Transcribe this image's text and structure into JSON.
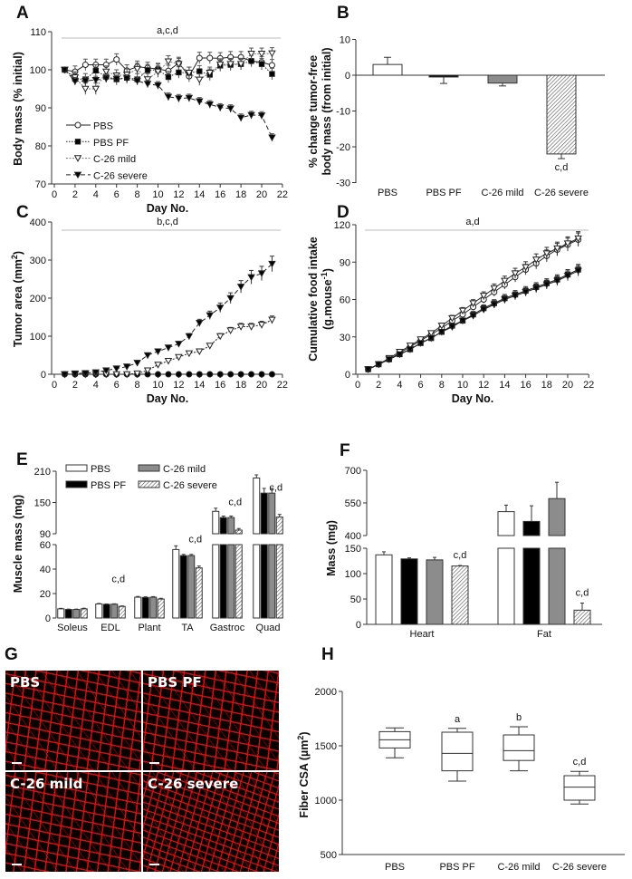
{
  "groups": [
    "PBS",
    "PBS PF",
    "C-26 mild",
    "C-26 severe"
  ],
  "colors": {
    "pbs": "#ffffff",
    "pbs_pf": "#000000",
    "mild": "#8c8c8c",
    "severe_hatch": "#555555",
    "sig_line": "#bbbbbb",
    "red": "#e01818"
  },
  "chart_data": [
    {
      "panel": "A",
      "type": "line",
      "title": "",
      "xlabel": "Day No.",
      "ylabel": "Body mass (% initial)",
      "xlim": [
        0,
        22
      ],
      "ylim": [
        70,
        110
      ],
      "xticks": [
        0,
        2,
        4,
        6,
        8,
        10,
        12,
        14,
        16,
        18,
        20,
        22
      ],
      "yticks": [
        70,
        80,
        90,
        100,
        110
      ],
      "significance": "a,c,d",
      "legend": "bottom-left",
      "x": [
        1,
        2,
        3,
        4,
        5,
        6,
        7,
        8,
        9,
        10,
        11,
        12,
        13,
        14,
        15,
        16,
        17,
        18,
        19,
        20,
        21
      ],
      "series": [
        {
          "name": "PBS",
          "sem": 1.5,
          "values": [
            100,
            99.5,
            101.3,
            101.3,
            101.3,
            102.7,
            99.8,
            100.8,
            100.5,
            100.2,
            99.7,
            101.8,
            98.3,
            103.1,
            103.1,
            103.0,
            103.3,
            103.3,
            102.3,
            102.0,
            101.2
          ]
        },
        {
          "name": "PBS PF",
          "sem": 1.5,
          "values": [
            100,
            97.6,
            97.5,
            99.8,
            98.2,
            97.5,
            97.9,
            97.5,
            99.9,
            100,
            98.1,
            99.3,
            99.2,
            99.6,
            98.7,
            101.1,
            101.3,
            101.5,
            102.3,
            101.5,
            98.9
          ]
        },
        {
          "name": "C-26 mild",
          "sem": 1.5,
          "values": [
            100,
            98,
            95,
            95,
            99.5,
            98.5,
            98.7,
            100.2,
            97.5,
            99.5,
            102.2,
            101.5,
            99.2,
            97.4,
            99.2,
            101.4,
            101.5,
            101.5,
            104.2,
            104.2,
            104.3
          ]
        },
        {
          "name": "C-26 severe",
          "sem": 1.0,
          "values": [
            100,
            97.0,
            97.1,
            97.3,
            97.7,
            97.6,
            97.7,
            97.1,
            96.3,
            95.9,
            92.9,
            92.5,
            92.6,
            91.7,
            90.9,
            90.1,
            89.8,
            87.4,
            88.1,
            88.0,
            82.2
          ]
        }
      ]
    },
    {
      "panel": "B",
      "type": "bar",
      "xlabel": "",
      "ylabel": [
        "% change tumor-free",
        "body mass (from initial)"
      ],
      "ylim": [
        -30,
        10
      ],
      "yticks": [
        -30,
        -20,
        -10,
        0,
        10
      ],
      "categories": [
        "PBS",
        "PBS PF",
        "C-26 mild",
        "C-26 severe"
      ],
      "values": [
        3,
        -0.5,
        -2.2,
        -22
      ],
      "errors": [
        2,
        1.8,
        0.8,
        1.3
      ],
      "annotations": [
        "",
        "",
        "",
        "c,d"
      ]
    },
    {
      "panel": "C",
      "type": "line",
      "xlabel": "Day No.",
      "ylabel": "Tumor area (mm",
      "ylabel_sup": "2",
      "ylabel_end": ")",
      "xlim": [
        0,
        22
      ],
      "ylim": [
        0,
        400
      ],
      "xticks": [
        0,
        2,
        4,
        6,
        8,
        10,
        12,
        14,
        16,
        18,
        20,
        22
      ],
      "yticks": [
        0,
        100,
        200,
        300,
        400
      ],
      "significance": "b,c,d",
      "x": [
        1,
        2,
        3,
        4,
        5,
        6,
        7,
        8,
        9,
        10,
        11,
        12,
        13,
        14,
        15,
        16,
        17,
        18,
        19,
        20,
        21
      ],
      "series": [
        {
          "name": "PBS",
          "values": [
            0,
            0,
            0,
            0,
            0,
            0,
            0,
            0,
            0,
            0,
            0,
            0,
            0,
            0,
            0,
            0,
            0,
            0,
            0,
            0,
            0
          ]
        },
        {
          "name": "C-26 mild",
          "values": [
            0,
            0,
            0,
            0,
            0,
            0,
            0,
            2,
            10,
            25,
            35,
            45,
            55,
            60,
            75,
            100,
            115,
            125,
            125,
            130,
            143
          ]
        },
        {
          "name": "C-26 severe",
          "values": [
            0,
            2,
            3,
            5,
            10,
            15,
            20,
            30,
            50,
            60,
            70,
            80,
            100,
            135,
            155,
            175,
            200,
            230,
            255,
            265,
            290
          ]
        }
      ]
    },
    {
      "panel": "D",
      "type": "line",
      "xlabel": "Day No.",
      "ylabel": "Cumulative food intake",
      "ylabel2": "(g.mouse",
      "ylabel2_sup": "-1",
      "ylabel2_end": ")",
      "xlim": [
        0,
        22
      ],
      "ylim": [
        0,
        120
      ],
      "xticks": [
        0,
        2,
        4,
        6,
        8,
        10,
        12,
        14,
        16,
        18,
        20,
        22
      ],
      "yticks": [
        0,
        30,
        60,
        90,
        120
      ],
      "significance": "a,d",
      "x": [
        1,
        2,
        3,
        4,
        5,
        6,
        7,
        8,
        9,
        10,
        11,
        12,
        13,
        14,
        15,
        16,
        17,
        18,
        19,
        20,
        21
      ],
      "series": [
        {
          "name": "PBS",
          "values": [
            4,
            8,
            12,
            17,
            22,
            27,
            32,
            37,
            43,
            48,
            54,
            60,
            66,
            72,
            78,
            84,
            89,
            95,
            100,
            104,
            108
          ]
        },
        {
          "name": "PBS PF",
          "values": [
            4,
            8,
            12,
            16,
            20,
            25,
            29,
            34,
            39,
            43,
            48,
            53,
            57,
            61,
            64,
            67,
            70,
            73,
            76,
            80,
            84
          ]
        },
        {
          "name": "C-26 mild",
          "values": [
            4,
            8,
            13,
            18,
            23,
            28,
            33,
            39,
            45,
            51,
            57,
            63,
            69,
            75,
            81,
            86,
            92,
            97,
            101,
            105,
            109
          ]
        },
        {
          "name": "C-26 severe",
          "values": [
            4,
            8,
            12,
            16,
            20,
            25,
            29,
            34,
            38,
            43,
            47,
            52,
            56,
            60,
            63,
            66,
            69,
            72,
            75,
            79,
            83
          ]
        }
      ]
    },
    {
      "panel": "E",
      "type": "bar",
      "xlabel": "",
      "ylabel": "Muscle mass (mg)",
      "ylim_lower": [
        0,
        60
      ],
      "ylim_upper": [
        90,
        210
      ],
      "yticks_lower": [
        0,
        20,
        40,
        60
      ],
      "yticks_upper": [
        90,
        150,
        210
      ],
      "legend": "top-left",
      "categories": [
        "Soleus",
        "EDL",
        "Plant",
        "TA",
        "Gastroc",
        "Quad"
      ],
      "series": [
        {
          "name": "PBS",
          "values": [
            7.5,
            11.5,
            17,
            56,
            133,
            197
          ],
          "errors": [
            0.4,
            0.4,
            0.6,
            3,
            6,
            6
          ]
        },
        {
          "name": "PBS PF",
          "values": [
            7,
            11.2,
            16.8,
            51,
            121,
            168
          ],
          "errors": [
            0.3,
            0.3,
            0.5,
            1,
            3,
            9
          ]
        },
        {
          "name": "C-26 mild",
          "values": [
            7,
            11.3,
            17,
            51,
            121,
            168
          ],
          "errors": [
            0.3,
            0.3,
            0.5,
            1,
            3,
            9
          ]
        },
        {
          "name": "C-26 severe",
          "values": [
            7.5,
            9.5,
            15.5,
            41,
            97,
            122
          ],
          "errors": [
            0.5,
            0.4,
            0.6,
            1.5,
            3,
            5
          ]
        }
      ],
      "annotations": [
        "",
        "c,d",
        "",
        "c,d",
        "c,d",
        "c,d"
      ]
    },
    {
      "panel": "F",
      "type": "bar",
      "xlabel": "",
      "ylabel": "Mass (mg)",
      "ylim_lower": [
        0,
        150
      ],
      "ylim_upper": [
        400,
        700
      ],
      "yticks_lower": [
        0,
        50,
        100,
        150
      ],
      "yticks_upper": [
        400,
        550,
        700
      ],
      "categories": [
        "Heart",
        "Fat"
      ],
      "series": [
        {
          "name": "PBS",
          "values": [
            137,
            510
          ],
          "errors": [
            6,
            30
          ]
        },
        {
          "name": "PBS PF",
          "values": [
            129,
            465
          ],
          "errors": [
            2,
            72
          ]
        },
        {
          "name": "C-26 mild",
          "values": [
            127,
            570
          ],
          "errors": [
            5,
            75
          ]
        },
        {
          "name": "C-26 severe",
          "values": [
            115,
            28
          ],
          "errors": [
            1,
            14
          ]
        }
      ],
      "annotations": [
        "c,d",
        "c,d"
      ]
    },
    {
      "panel": "H",
      "type": "box",
      "ylabel": "Fiber CSA (µm",
      "ylabel_sup": "2",
      "ylabel_end": ")",
      "ylim": [
        500,
        2000
      ],
      "yticks": [
        500,
        1000,
        1500,
        2000
      ],
      "categories": [
        "PBS",
        "PBS PF",
        "C-26 mild",
        "C-26 severe"
      ],
      "boxes": [
        {
          "min": 1390,
          "q1": 1480,
          "median": 1555,
          "q3": 1630,
          "max": 1665
        },
        {
          "min": 1175,
          "q1": 1270,
          "median": 1430,
          "q3": 1625,
          "max": 1660
        },
        {
          "min": 1270,
          "q1": 1365,
          "median": 1455,
          "q3": 1600,
          "max": 1675
        },
        {
          "min": 965,
          "q1": 1000,
          "median": 1120,
          "q3": 1225,
          "max": 1265
        }
      ],
      "annotations": [
        "",
        "a",
        "b",
        "c,d"
      ]
    }
  ],
  "panel_g": {
    "letter": "G",
    "images": [
      "PBS",
      "PBS PF",
      "C-26 mild",
      "C-26 severe"
    ]
  }
}
